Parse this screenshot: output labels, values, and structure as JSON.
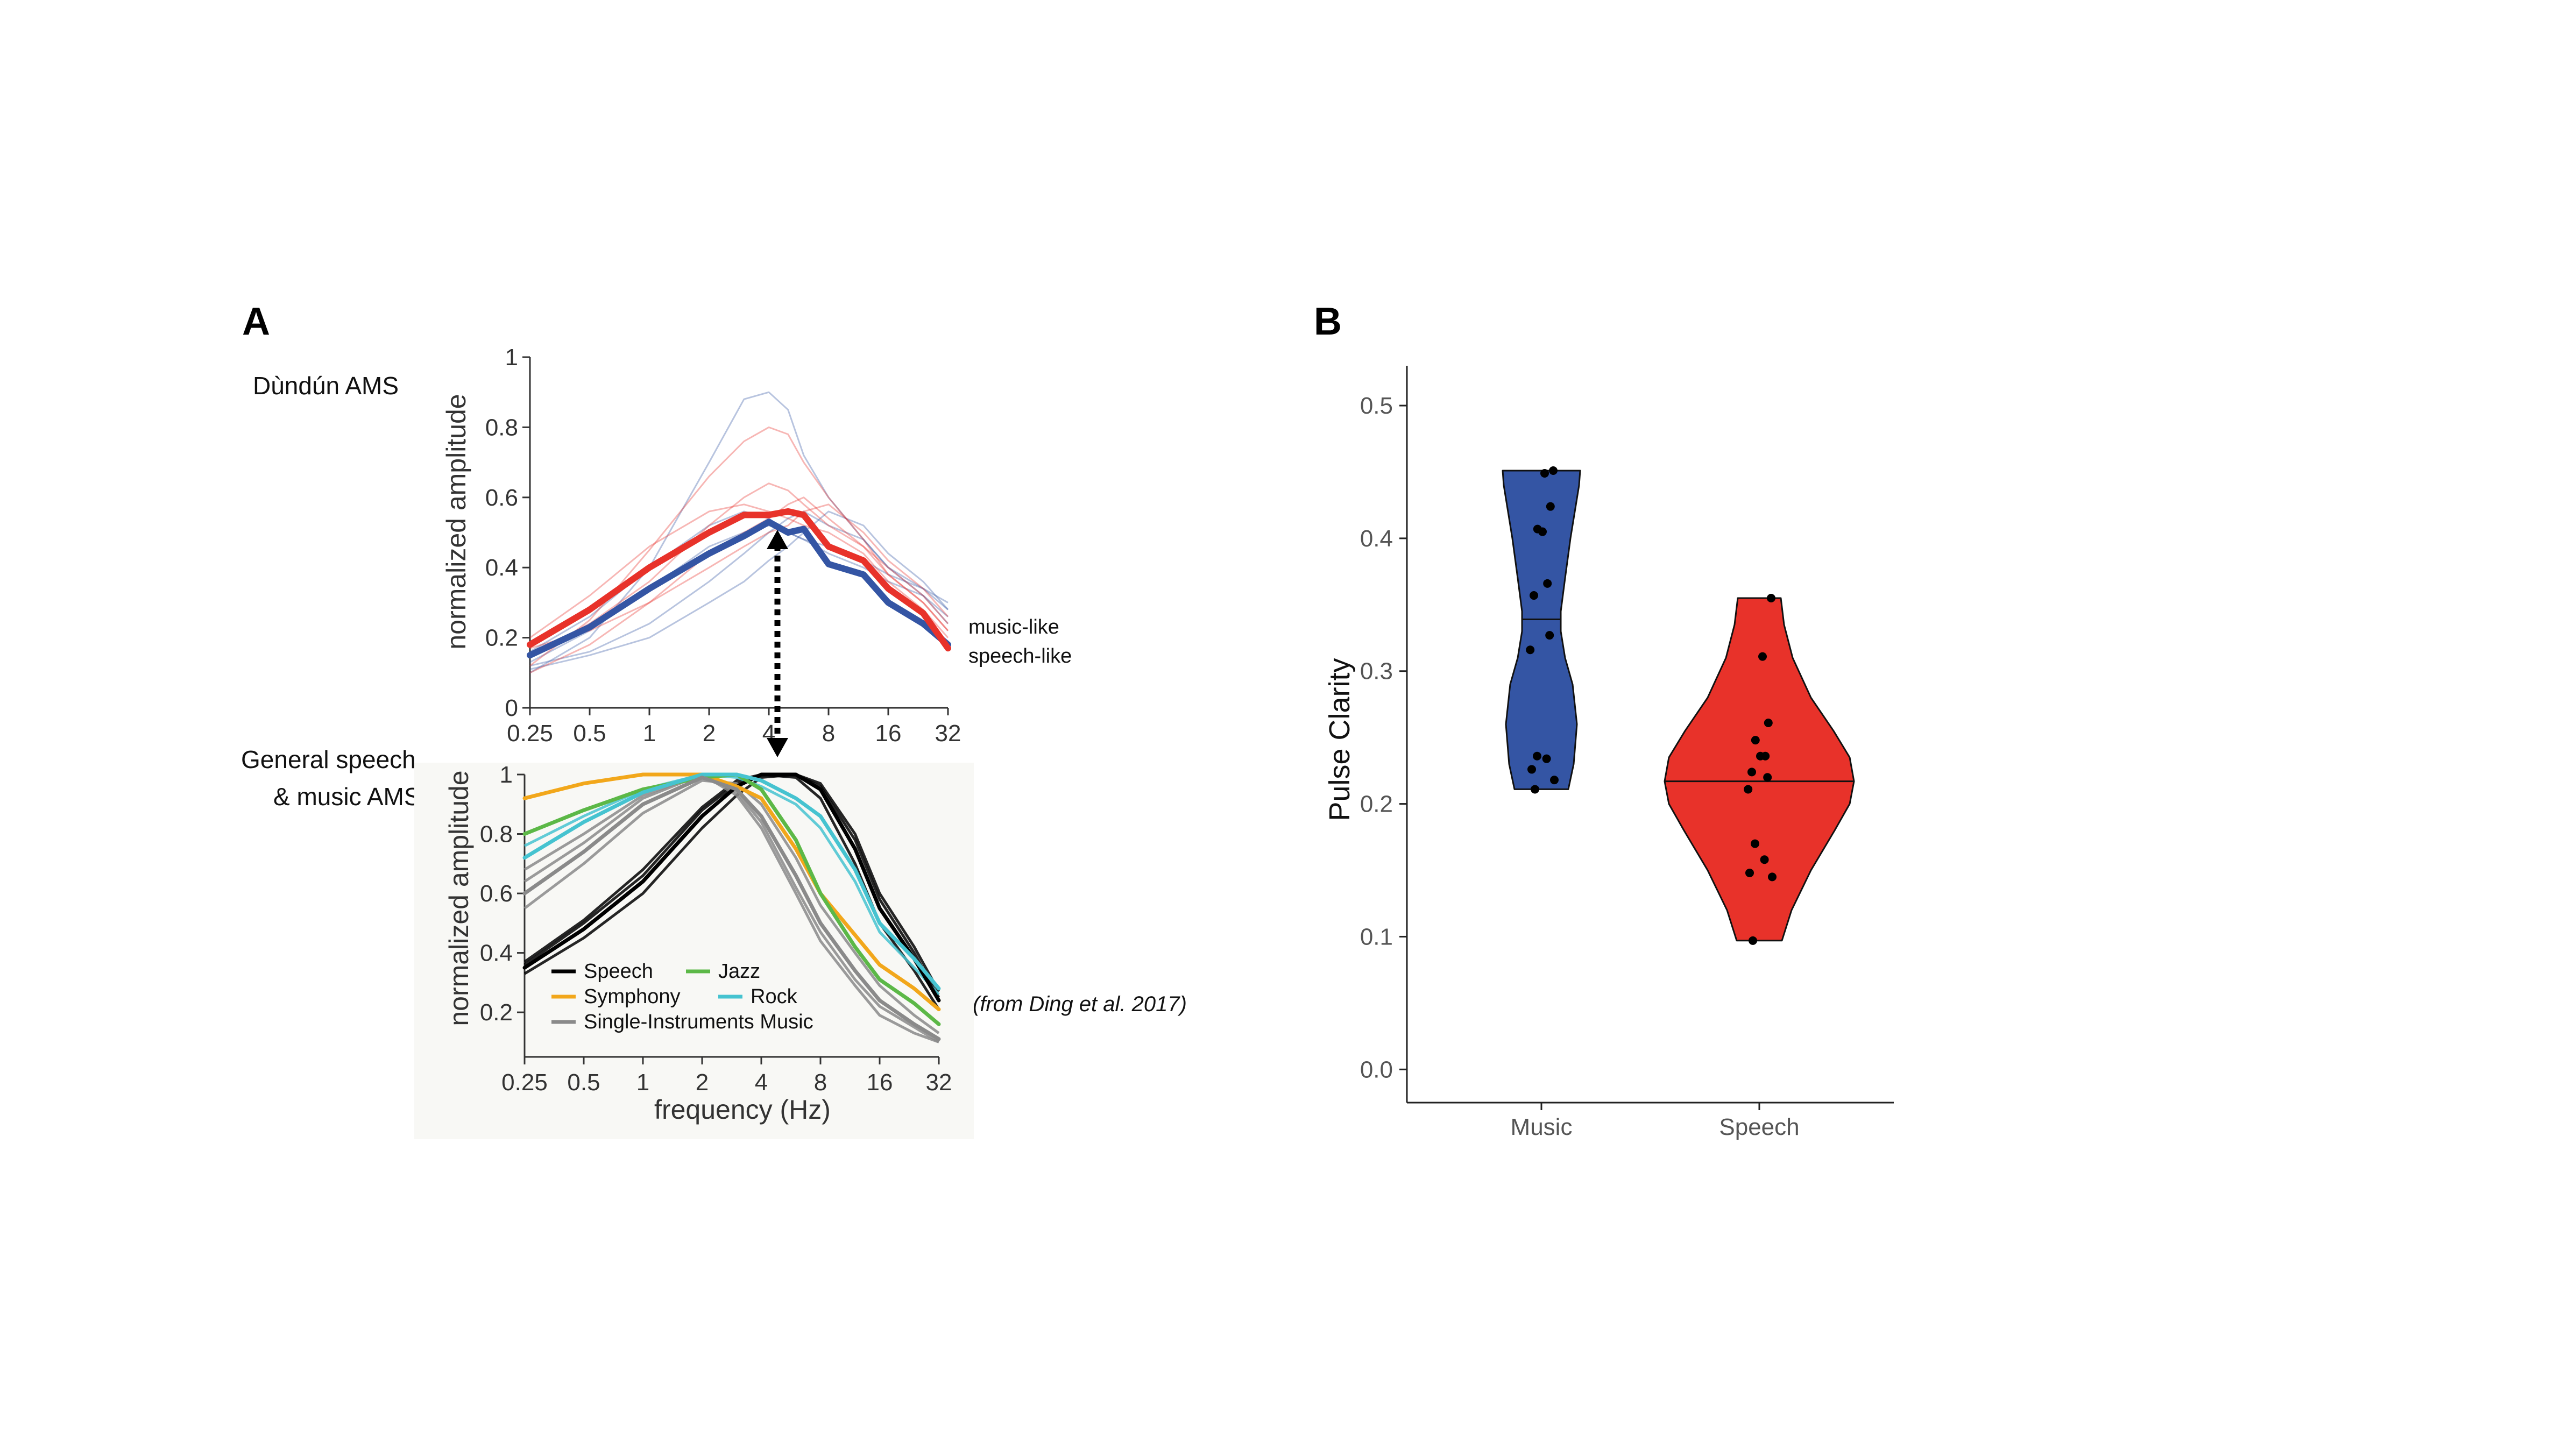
{
  "panel_a": {
    "letter": "A",
    "top_label": "Dùndún AMS",
    "bottom_label_line1": "General speech",
    "bottom_label_line2": "& music AMS",
    "citation": "(from Ding et al. 2017)"
  },
  "panel_b": {
    "letter": "B"
  },
  "colors": {
    "music": "#3455a4",
    "speech": "#e8322a",
    "jazz": "#5cb847",
    "symphony": "#f2a71b",
    "rock": "#46c3d0",
    "single": "#8a8a8a",
    "black": "#000000"
  },
  "chart_data": [
    {
      "type": "line",
      "scale": "log2",
      "ylabel": "normalized amplitude",
      "x_ticks": [
        "0.25",
        "0.5",
        "1",
        "2",
        "4",
        "8",
        "16",
        "32"
      ],
      "y_ticks": [
        "0",
        "0.2",
        "0.4",
        "0.6",
        "0.8",
        "1"
      ],
      "xlim": [
        0.25,
        32
      ],
      "ylim": [
        0,
        1
      ],
      "legend": [
        "music-like",
        "speech-like"
      ],
      "x": [
        0.25,
        0.5,
        1,
        2,
        3,
        4,
        5,
        6,
        8,
        12,
        16,
        24,
        32
      ],
      "series": [
        {
          "name": "music-like",
          "values": [
            0.15,
            0.23,
            0.34,
            0.44,
            0.49,
            0.53,
            0.5,
            0.51,
            0.41,
            0.38,
            0.3,
            0.24,
            0.18
          ]
        },
        {
          "name": "speech-like",
          "values": [
            0.18,
            0.28,
            0.4,
            0.5,
            0.55,
            0.55,
            0.56,
            0.55,
            0.46,
            0.42,
            0.34,
            0.27,
            0.17
          ]
        }
      ],
      "thin_traces": {
        "music": [
          [
            0.1,
            0.2,
            0.4,
            0.7,
            0.88,
            0.9,
            0.85,
            0.72,
            0.6,
            0.48,
            0.4,
            0.34,
            0.28
          ],
          [
            0.13,
            0.22,
            0.34,
            0.46,
            0.5,
            0.52,
            0.5,
            0.48,
            0.46,
            0.42,
            0.38,
            0.34,
            0.3
          ],
          [
            0.12,
            0.16,
            0.24,
            0.36,
            0.44,
            0.5,
            0.54,
            0.56,
            0.52,
            0.48,
            0.4,
            0.32,
            0.26
          ],
          [
            0.16,
            0.26,
            0.4,
            0.52,
            0.56,
            0.54,
            0.5,
            0.48,
            0.44,
            0.4,
            0.36,
            0.32,
            0.24
          ],
          [
            0.11,
            0.15,
            0.2,
            0.3,
            0.36,
            0.42,
            0.46,
            0.5,
            0.56,
            0.52,
            0.44,
            0.36,
            0.28
          ]
        ],
        "speech": [
          [
            0.12,
            0.25,
            0.45,
            0.66,
            0.76,
            0.8,
            0.78,
            0.7,
            0.6,
            0.48,
            0.38,
            0.3,
            0.22
          ],
          [
            0.15,
            0.24,
            0.36,
            0.52,
            0.6,
            0.64,
            0.62,
            0.58,
            0.52,
            0.46,
            0.4,
            0.32,
            0.24
          ],
          [
            0.2,
            0.32,
            0.46,
            0.56,
            0.58,
            0.56,
            0.54,
            0.52,
            0.5,
            0.44,
            0.36,
            0.28,
            0.2
          ],
          [
            0.1,
            0.18,
            0.3,
            0.44,
            0.5,
            0.54,
            0.58,
            0.6,
            0.54,
            0.46,
            0.38,
            0.3,
            0.22
          ],
          [
            0.17,
            0.22,
            0.3,
            0.4,
            0.46,
            0.5,
            0.52,
            0.56,
            0.58,
            0.5,
            0.42,
            0.34,
            0.26
          ]
        ]
      }
    },
    {
      "type": "line",
      "scale": "log2",
      "xlabel": "frequency (Hz)",
      "ylabel": "normalized amplitude",
      "x_ticks": [
        "0.25",
        "0.5",
        "1",
        "2",
        "4",
        "8",
        "16",
        "32"
      ],
      "y_ticks": [
        "0.2",
        "0.4",
        "0.6",
        "0.8",
        "1"
      ],
      "xlim": [
        0.25,
        32
      ],
      "ylim": [
        0.05,
        1
      ],
      "legend": [
        "Speech",
        "Jazz",
        "Symphony",
        "Rock",
        "Single-Instruments Music"
      ],
      "x": [
        0.25,
        0.5,
        1,
        2,
        3,
        4,
        6,
        8,
        12,
        16,
        24,
        32
      ],
      "series": [
        {
          "name": "Speech",
          "values": [
            0.35,
            0.48,
            0.64,
            0.86,
            0.96,
            1.0,
            1.0,
            0.95,
            0.75,
            0.55,
            0.38,
            0.24
          ]
        },
        {
          "name": "Symphony",
          "values": [
            0.92,
            0.97,
            1.0,
            1.0,
            0.96,
            0.92,
            0.75,
            0.6,
            0.46,
            0.36,
            0.28,
            0.21
          ]
        },
        {
          "name": "Jazz",
          "values": [
            0.8,
            0.88,
            0.95,
            0.99,
            1.0,
            0.95,
            0.78,
            0.6,
            0.42,
            0.31,
            0.23,
            0.16
          ]
        },
        {
          "name": "Rock",
          "values": [
            0.72,
            0.84,
            0.94,
            1.0,
            1.0,
            0.98,
            0.92,
            0.86,
            0.68,
            0.5,
            0.38,
            0.28
          ]
        },
        {
          "name": "Single-Instruments Music",
          "values": [
            0.6,
            0.74,
            0.9,
            0.99,
            0.95,
            0.86,
            0.66,
            0.5,
            0.34,
            0.24,
            0.16,
            0.11
          ]
        }
      ],
      "thin_traces": {
        "speech": [
          [
            0.33,
            0.45,
            0.6,
            0.82,
            0.93,
            0.99,
            1.0,
            0.97,
            0.8,
            0.6,
            0.42,
            0.27
          ],
          [
            0.37,
            0.51,
            0.68,
            0.89,
            0.98,
            1.0,
            0.99,
            0.92,
            0.7,
            0.5,
            0.34,
            0.21
          ],
          [
            0.36,
            0.5,
            0.66,
            0.88,
            0.97,
            1.0,
            1.0,
            0.96,
            0.78,
            0.58,
            0.4,
            0.25
          ]
        ],
        "single": [
          [
            0.68,
            0.8,
            0.93,
            1.0,
            0.93,
            0.82,
            0.6,
            0.44,
            0.29,
            0.19,
            0.13,
            0.1
          ],
          [
            0.55,
            0.7,
            0.87,
            0.98,
            0.97,
            0.9,
            0.72,
            0.56,
            0.4,
            0.29,
            0.19,
            0.13
          ],
          [
            0.64,
            0.77,
            0.92,
            1.0,
            0.94,
            0.84,
            0.62,
            0.47,
            0.31,
            0.22,
            0.15,
            0.1
          ]
        ],
        "rock": [
          [
            0.76,
            0.86,
            0.95,
            1.0,
            0.99,
            0.96,
            0.9,
            0.82,
            0.64,
            0.47,
            0.35,
            0.26
          ]
        ]
      },
      "citation": "(from Ding et al. 2017)"
    },
    {
      "type": "violin",
      "ylabel": "Pulse Clarity",
      "categories": [
        "Music",
        "Speech"
      ],
      "y_ticks": [
        "0.0",
        "0.1",
        "0.2",
        "0.3",
        "0.4",
        "0.5"
      ],
      "ylim": [
        -0.025,
        0.53
      ],
      "series": [
        {
          "name": "Music",
          "median": 0.339,
          "points": [
            0.451,
            0.449,
            0.424,
            0.407,
            0.405,
            0.366,
            0.357,
            0.327,
            0.316,
            0.236,
            0.234,
            0.226,
            0.218,
            0.211
          ]
        },
        {
          "name": "Speech",
          "median": 0.217,
          "points": [
            0.355,
            0.311,
            0.261,
            0.248,
            0.236,
            0.236,
            0.224,
            0.22,
            0.211,
            0.17,
            0.158,
            0.148,
            0.145,
            0.097
          ]
        }
      ]
    }
  ]
}
